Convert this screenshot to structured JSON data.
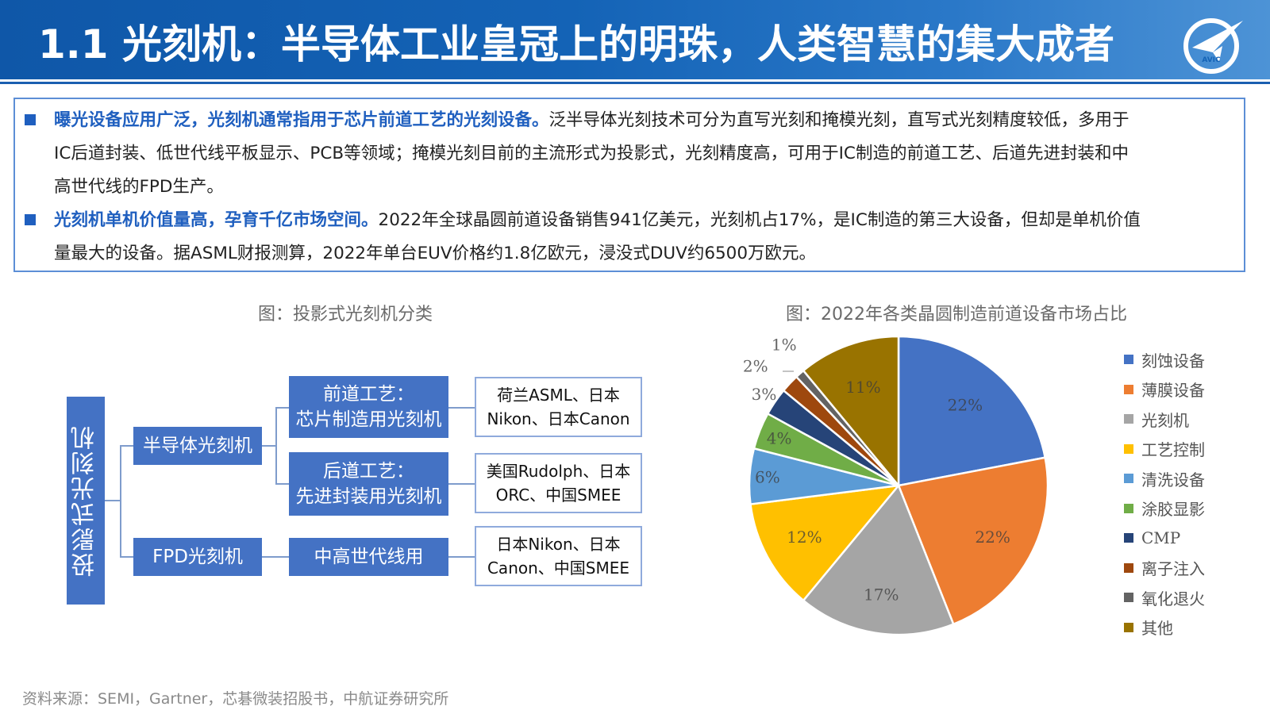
{
  "header": {
    "title": "1.1 光刻机：半导体工业皇冠上的明珠，人类智慧的集大成者",
    "logo_text": "AVIC"
  },
  "intro": {
    "p1": {
      "line1_highlight": "曝光设备应用广泛，光刻机通常指用于芯片前道工艺的光刻设备。",
      "line1_rest": "泛半导体光刻技术可分为直写光刻和掩模光刻，直写式光刻精度较低，多用于",
      "line2": "IC后道封装、低世代线平板显示、PCB等领域；掩模光刻目前的主流形式为投影式，光刻精度高，可用于IC制造的前道工艺、后道先进封装和中",
      "line3": "高世代线的FPD生产。"
    },
    "p2": {
      "line1_highlight": "光刻机单机价值量高，孕育千亿市场空间。",
      "line1_rest": "2022年全球晶圆前道设备销售941亿美元，光刻机占17%，是IC制造的第三大设备，但却是单机价值",
      "line2": "量最大的设备。据ASML财报测算，2022年单台EUV价格约1.8亿欧元，浸没式DUV约6500万欧元。"
    }
  },
  "diagram": {
    "caption": "图：投影式光刻机分类",
    "root": "投影式光刻机",
    "semiconductor": "半导体光刻机",
    "fpd": "FPD光刻机",
    "front_line1": "前道工艺：",
    "front_line2": "芯片制造用光刻机",
    "back_line1": "后道工艺：",
    "back_line2": "先进封装用光刻机",
    "mid": "中高世代线用",
    "vendors_front_line1": "荷兰ASML、日本",
    "vendors_front_line2": "Nikon、日本Canon",
    "vendors_back_line1": "美国Rudolph、日本",
    "vendors_back_line2": "ORC、中国SMEE",
    "vendors_fpd_line1": "日本Nikon、日本",
    "vendors_fpd_line2": "Canon、中国SMEE"
  },
  "pie_caption": "图：2022年各类晶圆制造前道设备市场占比",
  "chart_data": {
    "type": "pie",
    "title": "",
    "categories": [
      "刻蚀设备",
      "薄膜设备",
      "光刻机",
      "工艺控制",
      "清洗设备",
      "涂胶显影",
      "CMP",
      "离子注入",
      "氧化退火",
      "其他"
    ],
    "values": [
      22,
      22,
      17,
      12,
      6,
      4,
      3,
      2,
      1,
      11
    ],
    "value_labels": [
      "22%",
      "22%",
      "17%",
      "12%",
      "6%",
      "4%",
      "3%",
      "2%",
      "1%",
      "11%"
    ],
    "colors": [
      "#4472c4",
      "#ed7d31",
      "#a5a5a5",
      "#ffc000",
      "#5b9bd5",
      "#70ad47",
      "#264478",
      "#9e480e",
      "#636363",
      "#997300"
    ],
    "legend_position": "right"
  },
  "footer": {
    "source": "资料来源：SEMI，Gartner，芯碁微装招股书，中航证券研究所"
  }
}
